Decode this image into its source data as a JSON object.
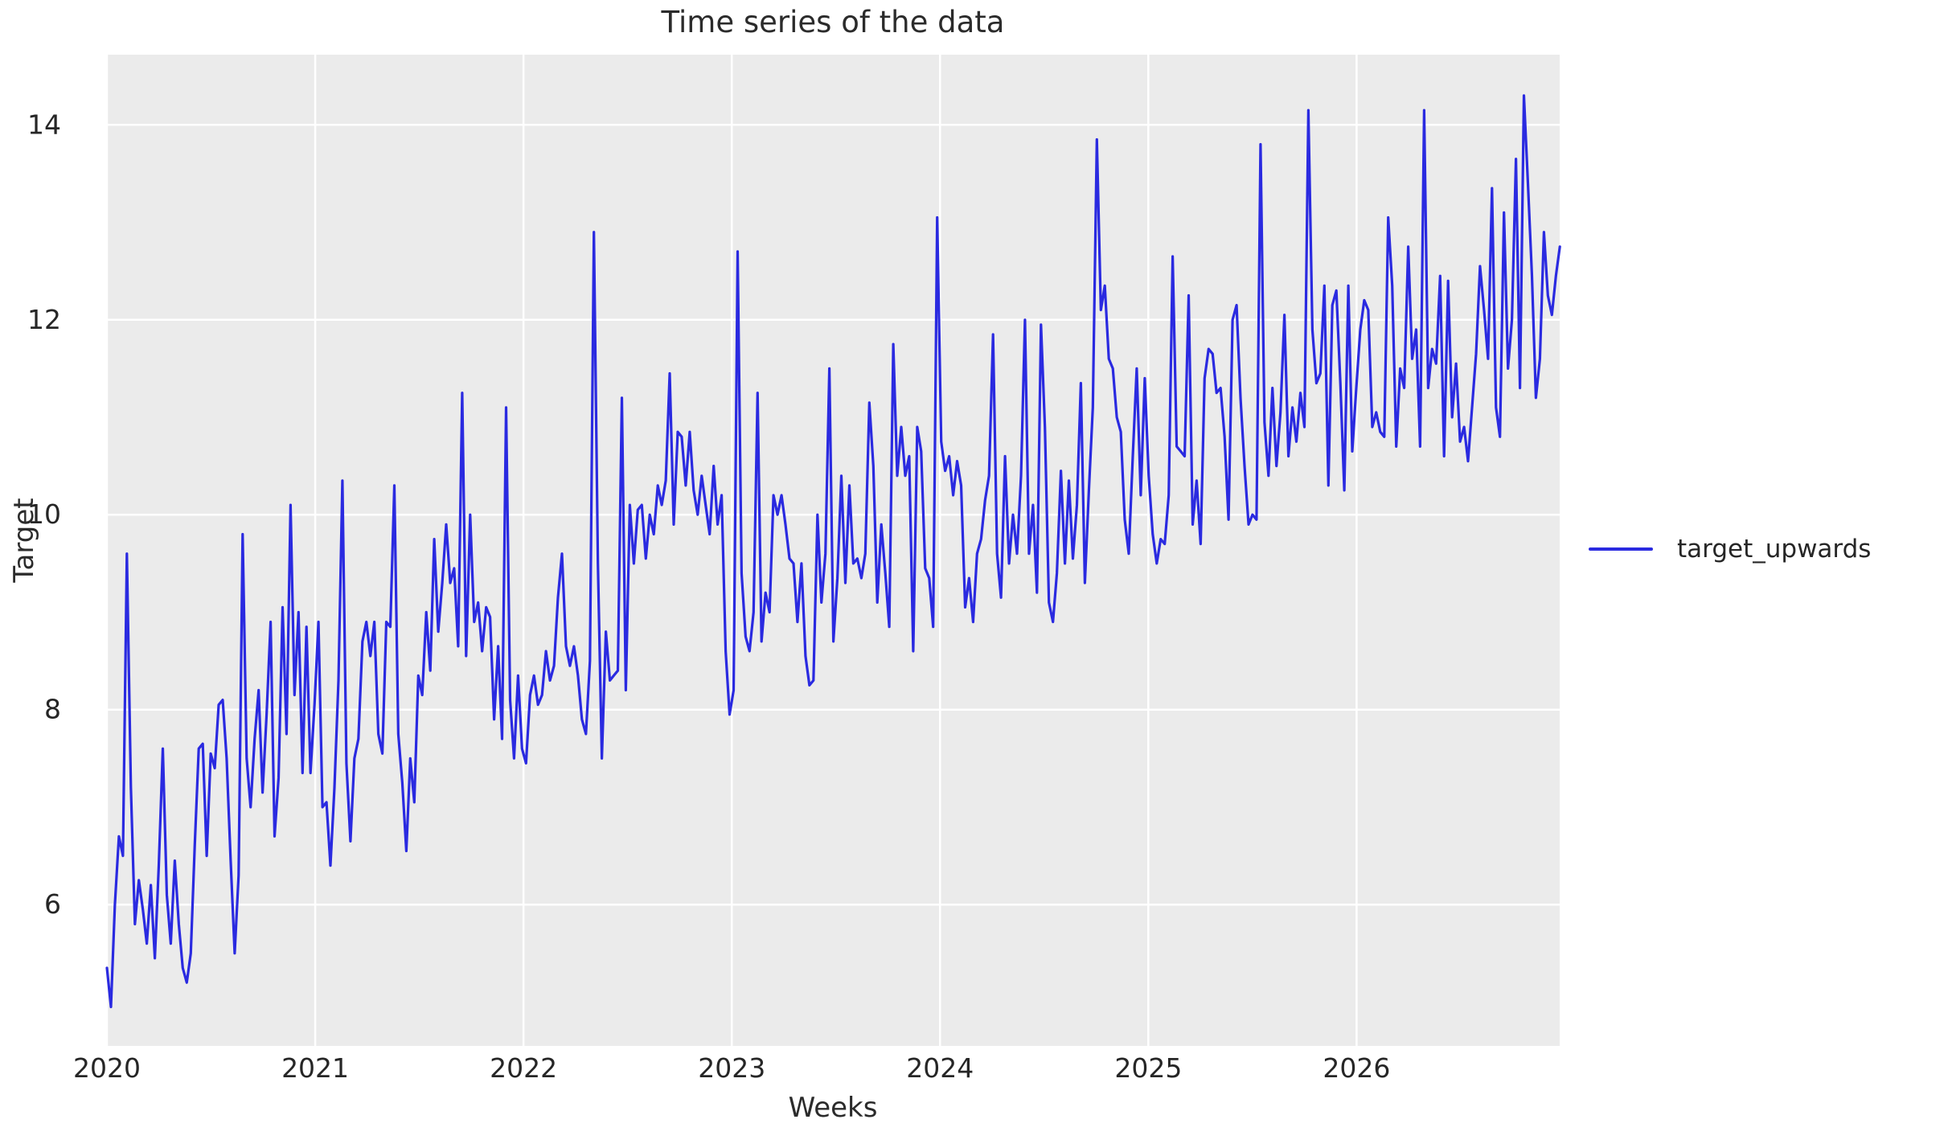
{
  "figure": {
    "title": "Time series of the data"
  },
  "colors": {
    "line": "#2a2ae0",
    "plot_background": "#ebebeb",
    "grid": "#ffffff",
    "text": "#262626"
  },
  "chart_data": {
    "type": "line",
    "title": "Time series of the data",
    "xlabel": "Weeks",
    "ylabel": "Target",
    "grid": true,
    "legend_position": "center right, outside axes",
    "legend": [
      {
        "name": "target_upwards",
        "color": "#2a2ae0"
      }
    ],
    "x_axis": {
      "tick_labels": [
        "2020",
        "2021",
        "2022",
        "2023",
        "2024",
        "2025",
        "2026"
      ],
      "tick_values": [
        2020,
        2021,
        2022,
        2023,
        2024,
        2025,
        2026
      ],
      "lim": [
        2020.0,
        2026.975
      ],
      "frequency": "weekly"
    },
    "y_axis": {
      "tick_labels": [
        "6",
        "8",
        "10",
        "12",
        "14"
      ],
      "tick_values": [
        6,
        8,
        10,
        12,
        14
      ],
      "lim": [
        4.55,
        14.72
      ]
    },
    "series": [
      {
        "name": "target_upwards",
        "color": "#2a2ae0",
        "x_start": 2020.0,
        "points_per_year": 52.18,
        "values": [
          5.35,
          4.95,
          6.0,
          6.7,
          6.5,
          9.6,
          7.2,
          5.8,
          6.25,
          5.95,
          5.6,
          6.2,
          5.45,
          6.4,
          7.6,
          6.1,
          5.6,
          6.45,
          5.8,
          5.35,
          5.2,
          5.5,
          6.6,
          7.6,
          7.65,
          6.5,
          7.55,
          7.4,
          8.05,
          8.1,
          7.5,
          6.45,
          5.5,
          6.3,
          9.8,
          7.5,
          7.0,
          7.7,
          8.2,
          7.15,
          7.95,
          8.9,
          6.7,
          7.3,
          9.05,
          7.75,
          10.1,
          8.15,
          9.0,
          7.35,
          8.85,
          7.35,
          8.05,
          8.9,
          7.0,
          7.05,
          6.4,
          7.2,
          8.3,
          10.35,
          7.45,
          6.65,
          7.5,
          7.7,
          8.7,
          8.9,
          8.55,
          8.9,
          7.75,
          7.55,
          8.9,
          8.85,
          10.3,
          7.75,
          7.25,
          6.55,
          7.5,
          7.05,
          8.35,
          8.15,
          9.0,
          8.4,
          9.75,
          8.8,
          9.3,
          9.9,
          9.3,
          9.45,
          8.65,
          11.25,
          8.55,
          10.0,
          8.9,
          9.1,
          8.6,
          9.05,
          8.95,
          7.9,
          8.65,
          7.7,
          11.1,
          8.1,
          7.5,
          8.35,
          7.6,
          7.45,
          8.15,
          8.35,
          8.05,
          8.15,
          8.6,
          8.3,
          8.45,
          9.15,
          9.6,
          8.65,
          8.45,
          8.65,
          8.35,
          7.9,
          7.75,
          8.5,
          12.9,
          9.5,
          7.5,
          8.8,
          8.3,
          8.35,
          8.4,
          11.2,
          8.2,
          10.1,
          9.5,
          10.05,
          10.1,
          9.55,
          10.0,
          9.8,
          10.3,
          10.1,
          10.35,
          11.45,
          9.9,
          10.85,
          10.8,
          10.3,
          10.85,
          10.25,
          10.0,
          10.4,
          10.1,
          9.8,
          10.5,
          9.9,
          10.2,
          8.6,
          7.95,
          8.2,
          12.7,
          9.4,
          8.75,
          8.6,
          9.0,
          11.25,
          8.7,
          9.2,
          9.0,
          10.2,
          10.0,
          10.2,
          9.9,
          9.55,
          9.5,
          8.9,
          9.5,
          8.55,
          8.25,
          8.3,
          10.0,
          9.1,
          9.6,
          11.5,
          8.7,
          9.35,
          10.4,
          9.3,
          10.3,
          9.5,
          9.55,
          9.35,
          9.6,
          11.15,
          10.5,
          9.1,
          9.9,
          9.4,
          8.85,
          11.75,
          10.4,
          10.9,
          10.4,
          10.6,
          8.6,
          10.9,
          10.65,
          9.45,
          9.35,
          8.85,
          13.05,
          10.75,
          10.45,
          10.6,
          10.2,
          10.55,
          10.3,
          9.05,
          9.35,
          8.9,
          9.6,
          9.75,
          10.15,
          10.4,
          11.85,
          9.6,
          9.15,
          10.6,
          9.5,
          10.0,
          9.6,
          10.4,
          12.0,
          9.6,
          10.1,
          9.2,
          11.95,
          10.9,
          9.1,
          8.9,
          9.4,
          10.45,
          9.5,
          10.35,
          9.55,
          10.1,
          11.35,
          9.3,
          10.25,
          11.1,
          13.85,
          12.1,
          12.35,
          11.6,
          11.5,
          11.0,
          10.85,
          9.95,
          9.6,
          10.6,
          11.5,
          10.2,
          11.4,
          10.4,
          9.8,
          9.5,
          9.75,
          9.7,
          10.2,
          12.65,
          10.7,
          10.65,
          10.6,
          12.25,
          9.9,
          10.35,
          9.7,
          11.4,
          11.7,
          11.65,
          11.25,
          11.3,
          10.8,
          9.95,
          12.0,
          12.15,
          11.2,
          10.5,
          9.9,
          10.0,
          9.95,
          13.8,
          10.95,
          10.4,
          11.3,
          10.5,
          11.05,
          12.05,
          10.6,
          11.1,
          10.75,
          11.25,
          10.9,
          14.15,
          11.9,
          11.35,
          11.45,
          12.35,
          10.3,
          12.15,
          12.3,
          11.35,
          10.25,
          12.35,
          10.65,
          11.3,
          11.9,
          12.2,
          12.1,
          10.9,
          11.05,
          10.85,
          10.8,
          13.05,
          12.35,
          10.7,
          11.5,
          11.3,
          12.75,
          11.6,
          11.9,
          10.7,
          14.15,
          11.3,
          11.7,
          11.55,
          12.45,
          10.6,
          12.4,
          11.0,
          11.55,
          10.75,
          10.9,
          10.55,
          11.1,
          11.65,
          12.55,
          12.1,
          11.6,
          13.35,
          11.1,
          10.8,
          13.1,
          11.5,
          12.0,
          13.65,
          11.3,
          14.3,
          13.4,
          12.45,
          11.2,
          11.6,
          12.9,
          12.25,
          12.05,
          12.45,
          12.75
        ]
      }
    ]
  }
}
